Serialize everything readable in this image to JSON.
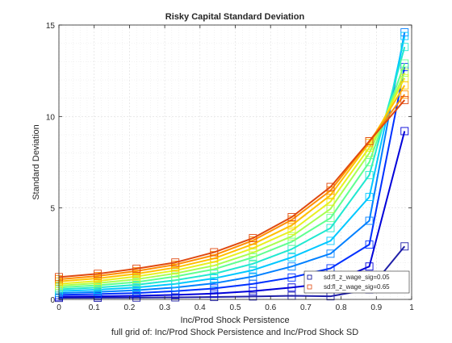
{
  "chart_data": {
    "type": "line",
    "title": "Risky Capital Standard Deviation",
    "xlabel": "Inc/Prod Shock Persistence",
    "ylabel": "Standard Deviation",
    "caption": "full grid of: Inc/Prod Shock Persistence and Inc/Prod Shock SD",
    "xlim": [
      0,
      1
    ],
    "ylim": [
      0,
      15
    ],
    "xticks": [
      "0",
      "0.1",
      "0.2",
      "0.3",
      "0.4",
      "0.5",
      "0.6",
      "0.7",
      "0.8",
      "0.9",
      "1"
    ],
    "yticks": [
      "0",
      "5",
      "10",
      "15"
    ],
    "grid": true,
    "legend_position": "bottom-right",
    "legend": [
      {
        "label": "sd:fl_z_wage_sig=0.05",
        "color": "#00008f"
      },
      {
        "label": "sd:fl_z_wage_sig=0.65",
        "color": "#e04a10"
      }
    ],
    "x": [
      0,
      0.11,
      0.22,
      0.33,
      0.44,
      0.55,
      0.66,
      0.77,
      0.88,
      0.98
    ],
    "series": [
      {
        "color": "#1f1fa8",
        "values": [
          0.08,
          0.09,
          0.1,
          0.11,
          0.13,
          0.16,
          0.2,
          0.17,
          0.55,
          2.9
        ]
      },
      {
        "color": "#0000d9",
        "values": [
          0.15,
          0.17,
          0.2,
          0.25,
          0.32,
          0.45,
          0.65,
          0.9,
          1.8,
          9.2
        ]
      },
      {
        "color": "#0030ff",
        "values": [
          0.25,
          0.29,
          0.35,
          0.45,
          0.6,
          0.85,
          1.2,
          1.7,
          3.0,
          12.7
        ]
      },
      {
        "color": "#0080ff",
        "values": [
          0.35,
          0.41,
          0.5,
          0.65,
          0.88,
          1.25,
          1.8,
          2.5,
          4.3,
          14.6
        ]
      },
      {
        "color": "#00c8ff",
        "values": [
          0.45,
          0.53,
          0.65,
          0.85,
          1.15,
          1.6,
          2.3,
          3.2,
          5.6,
          14.4
        ]
      },
      {
        "color": "#20e8d0",
        "values": [
          0.55,
          0.65,
          0.8,
          1.05,
          1.4,
          1.95,
          2.75,
          3.9,
          6.8,
          13.8
        ]
      },
      {
        "color": "#60ff90",
        "values": [
          0.65,
          0.77,
          0.95,
          1.25,
          1.65,
          2.3,
          3.15,
          4.45,
          7.5,
          12.9
        ]
      },
      {
        "color": "#a8ff50",
        "values": [
          0.75,
          0.89,
          1.1,
          1.42,
          1.85,
          2.55,
          3.45,
          4.95,
          8.0,
          12.4
        ]
      },
      {
        "color": "#e8f020",
        "values": [
          0.85,
          1.01,
          1.25,
          1.58,
          2.05,
          2.8,
          3.75,
          5.35,
          8.3,
          12.1
        ]
      },
      {
        "color": "#ffc000",
        "values": [
          0.98,
          1.15,
          1.4,
          1.74,
          2.24,
          3.02,
          4.05,
          5.7,
          8.55,
          11.7
        ]
      },
      {
        "color": "#ff9000",
        "values": [
          1.1,
          1.28,
          1.55,
          1.9,
          2.42,
          3.22,
          4.35,
          5.95,
          8.65,
          11.2
        ]
      },
      {
        "color": "#e04a10",
        "values": [
          1.22,
          1.4,
          1.68,
          2.02,
          2.58,
          3.35,
          4.5,
          6.15,
          8.65,
          10.9
        ]
      }
    ]
  }
}
